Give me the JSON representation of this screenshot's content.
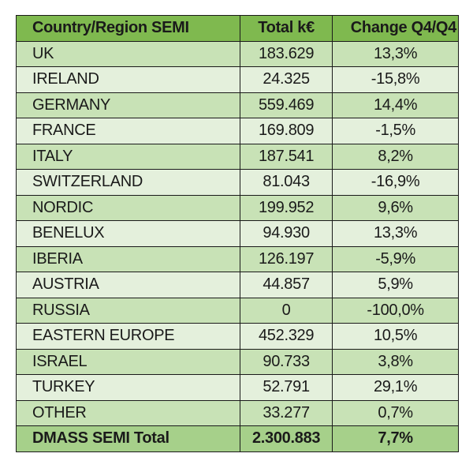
{
  "headers": [
    "Country/Region SEMI",
    "Total k€",
    "Change Q4/Q4"
  ],
  "rows": [
    [
      "UK",
      "183.629",
      "13,3%"
    ],
    [
      "IRELAND",
      "24.325",
      "-15,8%"
    ],
    [
      "GERMANY",
      "559.469",
      "14,4%"
    ],
    [
      "FRANCE",
      "169.809",
      "-1,5%"
    ],
    [
      "ITALY",
      "187.541",
      "8,2%"
    ],
    [
      "SWITZERLAND",
      "81.043",
      "-16,9%"
    ],
    [
      "NORDIC",
      "199.952",
      "9,6%"
    ],
    [
      "BENELUX",
      "94.930",
      "13,3%"
    ],
    [
      "IBERIA",
      "126.197",
      "-5,9%"
    ],
    [
      "AUSTRIA",
      "44.857",
      "5,9%"
    ],
    [
      "RUSSIA",
      "0",
      "-100,0%"
    ],
    [
      "EASTERN EUROPE",
      "452.329",
      "10,5%"
    ],
    [
      "ISRAEL",
      "90.733",
      "3,8%"
    ],
    [
      "TURKEY",
      "52.791",
      "29,1%"
    ],
    [
      "OTHER",
      "33.277",
      "0,7%"
    ]
  ],
  "total": [
    "DMASS SEMI Total",
    "2.300.883",
    "7,7%"
  ]
}
